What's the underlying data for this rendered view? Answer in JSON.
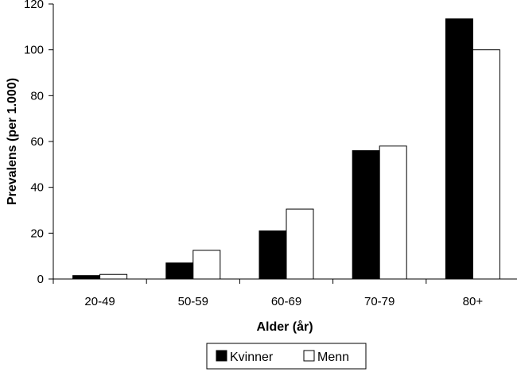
{
  "chart_data": {
    "type": "bar",
    "title": "",
    "xlabel": "Alder (år)",
    "ylabel": "Prevalens (per 1.000)",
    "categories": [
      "20-49",
      "50-59",
      "60-69",
      "70-79",
      "80+"
    ],
    "series": [
      {
        "name": "Kvinner",
        "values": [
          1.5,
          7,
          21,
          56,
          113.5
        ],
        "color": "#000000"
      },
      {
        "name": "Menn",
        "values": [
          2,
          12.5,
          30.5,
          58,
          100
        ],
        "color": "#ffffff"
      }
    ],
    "ylim": [
      0,
      120
    ],
    "yticks": [
      0,
      20,
      40,
      60,
      80,
      100,
      120
    ],
    "grid": false,
    "legend_position": "bottom-center"
  }
}
